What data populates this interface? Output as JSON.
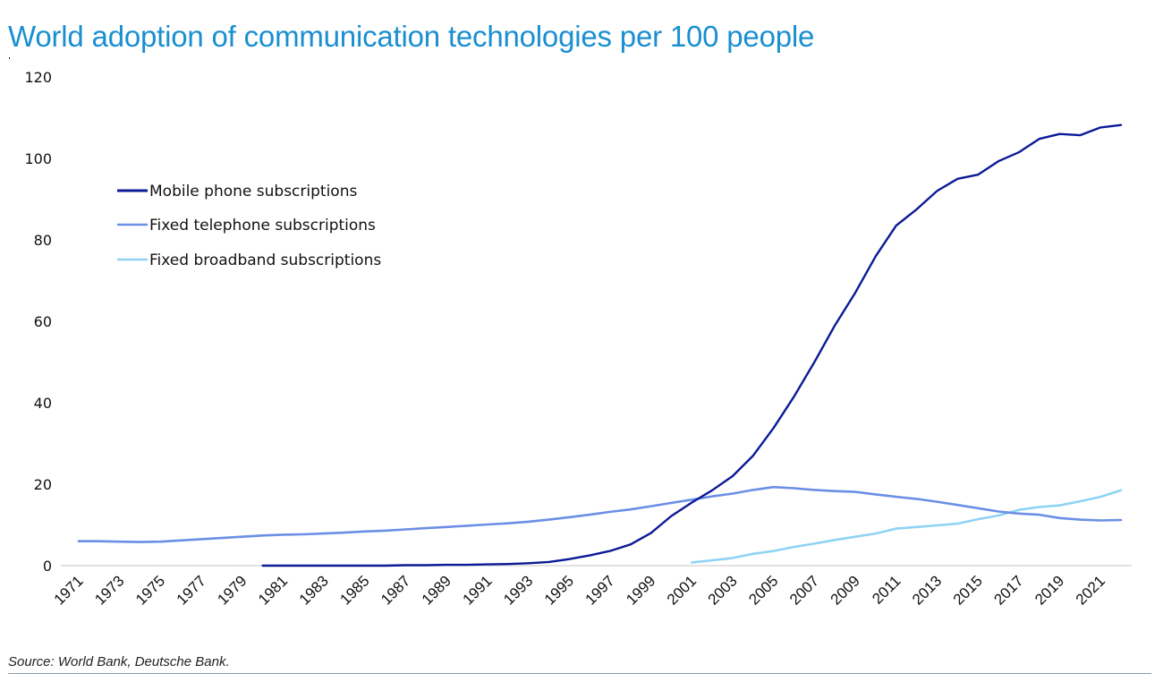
{
  "chart_data": {
    "type": "line",
    "title": "World adoption of communication technologies per 100 people",
    "xlabel": "",
    "ylabel": "",
    "ylim": [
      0,
      120
    ],
    "yticks": [
      0,
      20,
      40,
      60,
      80,
      100,
      120
    ],
    "xlim": [
      1971,
      2022
    ],
    "xticks": [
      "1971",
      "1973",
      "1975",
      "1977",
      "1979",
      "1981",
      "1983",
      "1985",
      "1987",
      "1989",
      "1991",
      "1993",
      "1995",
      "1997",
      "1999",
      "2001",
      "2003",
      "2005",
      "2007",
      "2009",
      "2011",
      "2013",
      "2015",
      "2017",
      "2019",
      "2021"
    ],
    "grid": false,
    "legend_position": "upper-left",
    "series": [
      {
        "name": "Mobile phone subscriptions",
        "color": "#0b1a96",
        "x": [
          1980,
          1981,
          1982,
          1983,
          1984,
          1985,
          1986,
          1987,
          1988,
          1989,
          1990,
          1991,
          1992,
          1993,
          1994,
          1995,
          1996,
          1997,
          1998,
          1999,
          2000,
          2001,
          2002,
          2003,
          2004,
          2005,
          2006,
          2007,
          2008,
          2009,
          2010,
          2011,
          2012,
          2013,
          2014,
          2015,
          2016,
          2017,
          2018,
          2019,
          2020,
          2021,
          2022
        ],
        "values": [
          0.0,
          0.0,
          0.0,
          0.0,
          0.0,
          0.0,
          0.0,
          0.1,
          0.1,
          0.2,
          0.2,
          0.3,
          0.4,
          0.6,
          0.9,
          1.6,
          2.5,
          3.6,
          5.2,
          8.0,
          12.2,
          15.5,
          18.5,
          22.0,
          27.0,
          33.8,
          41.5,
          50.0,
          59.0,
          67.0,
          76.0,
          83.5,
          87.5,
          92.0,
          95.0,
          96.0,
          99.3,
          101.5,
          104.8,
          106.0,
          105.7,
          107.6,
          108.2
        ]
      },
      {
        "name": "Fixed telephone subscriptions",
        "color": "#6b8fe6",
        "x": [
          1971,
          1972,
          1973,
          1974,
          1975,
          1976,
          1977,
          1978,
          1979,
          1980,
          1981,
          1982,
          1983,
          1984,
          1985,
          1986,
          1987,
          1988,
          1989,
          1990,
          1991,
          1992,
          1993,
          1994,
          1995,
          1996,
          1997,
          1998,
          1999,
          2000,
          2001,
          2002,
          2003,
          2004,
          2005,
          2006,
          2007,
          2008,
          2009,
          2010,
          2011,
          2012,
          2013,
          2014,
          2015,
          2016,
          2017,
          2018,
          2019,
          2020,
          2021,
          2022
        ],
        "values": [
          6.0,
          6.0,
          5.9,
          5.8,
          5.9,
          6.2,
          6.5,
          6.8,
          7.1,
          7.4,
          7.6,
          7.7,
          7.9,
          8.1,
          8.4,
          8.6,
          8.9,
          9.2,
          9.5,
          9.8,
          10.1,
          10.4,
          10.8,
          11.3,
          11.9,
          12.5,
          13.2,
          13.8,
          14.6,
          15.4,
          16.2,
          17.0,
          17.7,
          18.6,
          19.3,
          19.0,
          18.6,
          18.3,
          18.1,
          17.5,
          16.9,
          16.4,
          15.7,
          14.9,
          14.1,
          13.3,
          12.8,
          12.5,
          11.7,
          11.3,
          11.1,
          11.2
        ]
      },
      {
        "name": "Fixed broadband subscriptions",
        "color": "#8fd3f4",
        "x": [
          2001,
          2002,
          2003,
          2004,
          2005,
          2006,
          2007,
          2008,
          2009,
          2010,
          2011,
          2012,
          2013,
          2014,
          2015,
          2016,
          2017,
          2018,
          2019,
          2020,
          2021,
          2022
        ],
        "values": [
          0.8,
          1.3,
          1.9,
          2.9,
          3.6,
          4.6,
          5.4,
          6.3,
          7.1,
          7.9,
          9.1,
          9.5,
          9.9,
          10.3,
          11.4,
          12.3,
          13.7,
          14.4,
          14.8,
          15.8,
          16.9,
          18.5
        ]
      }
    ]
  },
  "footer": {
    "source": "Source: World Bank, Deutsche Bank."
  }
}
